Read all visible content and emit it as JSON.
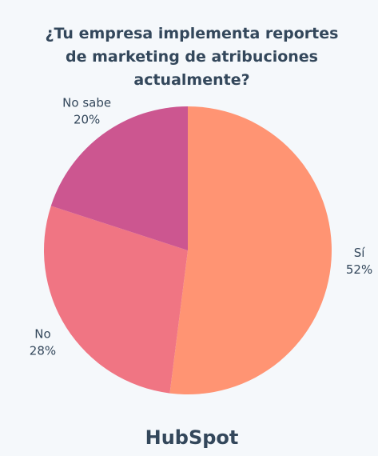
{
  "chart_data": {
    "type": "pie",
    "title": "¿Tu empresa implementa reportes de marketing de atribuciones actualmente?",
    "categories": [
      "Sí",
      "No",
      "No sabe"
    ],
    "values": [
      52,
      28,
      20
    ],
    "value_labels": [
      "52%",
      "28%",
      "20%"
    ],
    "colors": [
      "#ff9473",
      "#f07583",
      "#cc5690"
    ]
  },
  "footer": {
    "logo": "HubSpot"
  }
}
